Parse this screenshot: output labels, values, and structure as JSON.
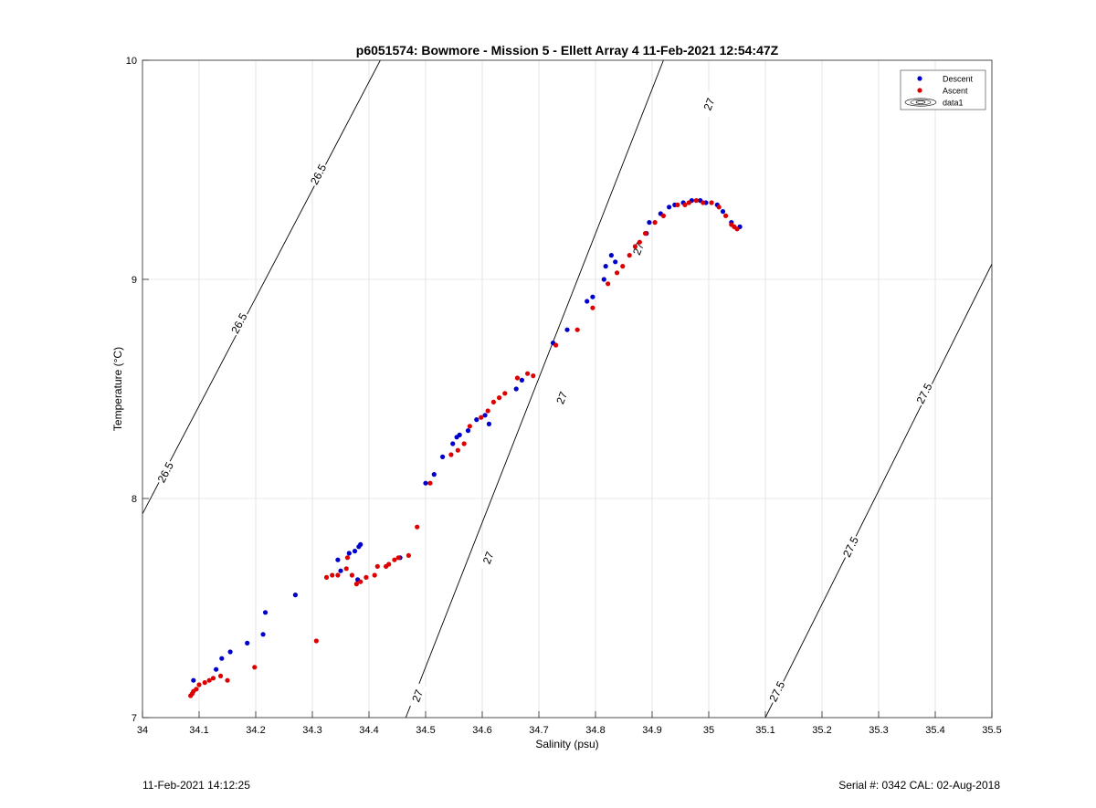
{
  "chart_data": {
    "type": "scatter",
    "title": "p6051574: Bowmore - Mission 5 - Ellett Array 4 11-Feb-2021 12:54:47Z",
    "xlabel": "Salinity (psu)",
    "ylabel": "Temperature (°C)",
    "xlim": [
      34,
      35.5
    ],
    "ylim": [
      7,
      10
    ],
    "xticks": [
      "34",
      "34.1",
      "34.2",
      "34.3",
      "34.4",
      "34.5",
      "34.6",
      "34.7",
      "34.8",
      "34.9",
      "35",
      "35.1",
      "35.2",
      "35.3",
      "35.4",
      "35.5"
    ],
    "yticks": [
      "7",
      "8",
      "9",
      "10"
    ],
    "grid": true,
    "legend_position": "top-right",
    "legend": [
      "Descent",
      "Ascent",
      "data1"
    ],
    "colors": {
      "descent": "#0000cc",
      "ascent": "#dd0000",
      "contour": "#000000",
      "grid": "#e0e0e0"
    },
    "contours": [
      {
        "label": "26.5",
        "points": [
          [
            34.0,
            7.93
          ],
          [
            34.42,
            10.0
          ]
        ],
        "label_positions": [
          [
            34.04,
            8.12
          ],
          [
            34.17,
            8.8
          ],
          [
            34.31,
            9.48
          ]
        ]
      },
      {
        "label": "27",
        "points": [
          [
            34.465,
            7.0
          ],
          [
            34.92,
            10.0
          ]
        ],
        "label_positions": [
          [
            34.485,
            7.1
          ],
          [
            34.61,
            7.73
          ],
          [
            34.74,
            8.46
          ],
          [
            34.875,
            9.14
          ],
          [
            35.0,
            9.8
          ]
        ]
      },
      {
        "label": "27.5",
        "points": [
          [
            35.1,
            7.0
          ],
          [
            35.5,
            9.07
          ]
        ],
        "label_positions": [
          [
            35.12,
            7.12
          ],
          [
            35.25,
            7.78
          ],
          [
            35.38,
            8.48
          ]
        ]
      }
    ],
    "series": [
      {
        "name": "Descent",
        "points": [
          [
            34.09,
            7.17
          ],
          [
            34.13,
            7.22
          ],
          [
            34.14,
            7.27
          ],
          [
            34.155,
            7.3
          ],
          [
            34.185,
            7.34
          ],
          [
            34.213,
            7.38
          ],
          [
            34.217,
            7.48
          ],
          [
            34.27,
            7.56
          ],
          [
            34.345,
            7.72
          ],
          [
            34.35,
            7.67
          ],
          [
            34.365,
            7.75
          ],
          [
            34.375,
            7.76
          ],
          [
            34.382,
            7.78
          ],
          [
            34.385,
            7.79
          ],
          [
            34.38,
            7.63
          ],
          [
            34.455,
            7.73
          ],
          [
            34.5,
            8.07
          ],
          [
            34.515,
            8.11
          ],
          [
            34.53,
            8.19
          ],
          [
            34.548,
            8.25
          ],
          [
            34.555,
            8.28
          ],
          [
            34.56,
            8.29
          ],
          [
            34.575,
            8.31
          ],
          [
            34.59,
            8.36
          ],
          [
            34.605,
            8.38
          ],
          [
            34.612,
            8.34
          ],
          [
            34.66,
            8.5
          ],
          [
            34.67,
            8.54
          ],
          [
            34.725,
            8.71
          ],
          [
            34.75,
            8.77
          ],
          [
            34.785,
            8.9
          ],
          [
            34.795,
            8.92
          ],
          [
            34.815,
            9.0
          ],
          [
            34.818,
            9.06
          ],
          [
            34.828,
            9.11
          ],
          [
            34.835,
            9.08
          ],
          [
            34.89,
            9.21
          ],
          [
            34.895,
            9.26
          ],
          [
            34.915,
            9.3
          ],
          [
            34.93,
            9.33
          ],
          [
            34.94,
            9.34
          ],
          [
            34.955,
            9.35
          ],
          [
            34.97,
            9.36
          ],
          [
            34.985,
            9.36
          ],
          [
            34.995,
            9.35
          ],
          [
            35.015,
            9.34
          ],
          [
            35.025,
            9.31
          ],
          [
            35.04,
            9.26
          ],
          [
            35.055,
            9.24
          ]
        ]
      },
      {
        "name": "Ascent",
        "points": [
          [
            34.085,
            7.1
          ],
          [
            34.088,
            7.11
          ],
          [
            34.09,
            7.12
          ],
          [
            34.095,
            7.13
          ],
          [
            34.1,
            7.15
          ],
          [
            34.11,
            7.16
          ],
          [
            34.118,
            7.17
          ],
          [
            34.125,
            7.18
          ],
          [
            34.138,
            7.19
          ],
          [
            34.15,
            7.17
          ],
          [
            34.198,
            7.23
          ],
          [
            34.307,
            7.35
          ],
          [
            34.325,
            7.64
          ],
          [
            34.335,
            7.65
          ],
          [
            34.345,
            7.65
          ],
          [
            34.36,
            7.68
          ],
          [
            34.362,
            7.73
          ],
          [
            34.37,
            7.65
          ],
          [
            34.378,
            7.61
          ],
          [
            34.385,
            7.62
          ],
          [
            34.395,
            7.64
          ],
          [
            34.41,
            7.65
          ],
          [
            34.415,
            7.69
          ],
          [
            34.43,
            7.69
          ],
          [
            34.435,
            7.7
          ],
          [
            34.445,
            7.72
          ],
          [
            34.452,
            7.73
          ],
          [
            34.47,
            7.74
          ],
          [
            34.485,
            7.87
          ],
          [
            34.508,
            8.07
          ],
          [
            34.545,
            8.2
          ],
          [
            34.557,
            8.22
          ],
          [
            34.568,
            8.25
          ],
          [
            34.578,
            8.33
          ],
          [
            34.598,
            8.37
          ],
          [
            34.61,
            8.4
          ],
          [
            34.62,
            8.44
          ],
          [
            34.63,
            8.46
          ],
          [
            34.64,
            8.48
          ],
          [
            34.662,
            8.55
          ],
          [
            34.68,
            8.57
          ],
          [
            34.69,
            8.56
          ],
          [
            34.73,
            8.7
          ],
          [
            34.768,
            8.77
          ],
          [
            34.795,
            8.87
          ],
          [
            34.822,
            8.98
          ],
          [
            34.838,
            9.03
          ],
          [
            34.848,
            9.06
          ],
          [
            34.86,
            9.11
          ],
          [
            34.87,
            9.15
          ],
          [
            34.878,
            9.17
          ],
          [
            34.888,
            9.21
          ],
          [
            34.905,
            9.26
          ],
          [
            34.92,
            9.29
          ],
          [
            34.945,
            9.34
          ],
          [
            34.958,
            9.34
          ],
          [
            34.965,
            9.35
          ],
          [
            34.978,
            9.36
          ],
          [
            34.99,
            9.35
          ],
          [
            35.005,
            9.35
          ],
          [
            35.018,
            9.33
          ],
          [
            35.03,
            9.29
          ],
          [
            35.04,
            9.25
          ],
          [
            35.045,
            9.24
          ],
          [
            35.05,
            9.23
          ]
        ]
      }
    ]
  },
  "footer": {
    "left": "11-Feb-2021 14:12:25",
    "right": "Serial #: 0342  CAL: 02-Aug-2018"
  }
}
